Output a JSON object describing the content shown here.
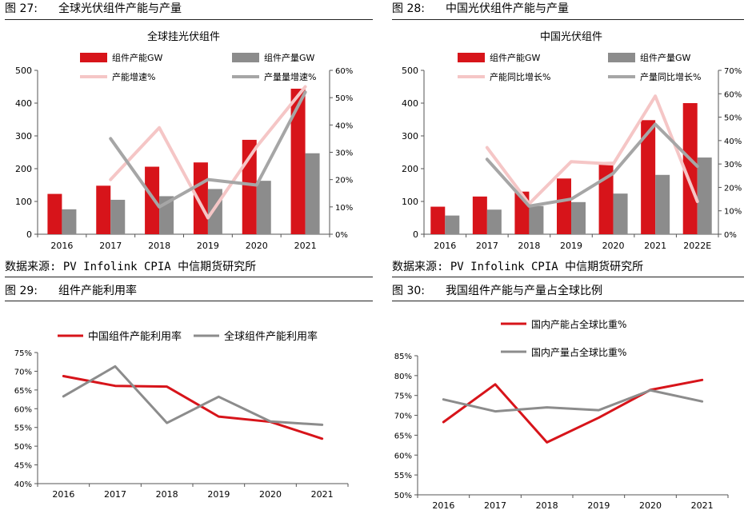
{
  "fig27": {
    "num": "图 27:",
    "title": "全球光伏组件产能与产量",
    "source": "数据来源: PV Infolink CPIA 中信期货研究所"
  },
  "fig28": {
    "num": "图 28:",
    "title": "中国光伏组件产能与产量",
    "source": "数据来源: PV Infolink CPIA 中信期货研究所"
  },
  "fig29": {
    "num": "图 29:",
    "title": "组件产能利用率"
  },
  "fig30": {
    "num": "图 30:",
    "title": "我国组件产能与产量占全球比例"
  },
  "colors": {
    "red": "#d7141a",
    "gray": "#8c8c8c",
    "pink": "#f5c6c6",
    "gray_line": "#a6a6a6"
  },
  "chart_data": [
    {
      "id": "c27",
      "type": "bar",
      "title": "全球挂光伏组件",
      "categories": [
        "2016",
        "2017",
        "2018",
        "2019",
        "2020",
        "2021"
      ],
      "series": [
        {
          "name": "组件产能GW",
          "kind": "bar",
          "axis": "left",
          "color": "#d7141a",
          "values": [
            123,
            148,
            206,
            219,
            288,
            444
          ]
        },
        {
          "name": "组件产量GW",
          "kind": "bar",
          "axis": "left",
          "color": "#8c8c8c",
          "values": [
            76,
            105,
            116,
            138,
            163,
            247
          ]
        },
        {
          "name": "产能增速%",
          "kind": "line",
          "axis": "right",
          "color": "#f5c6c6",
          "values": [
            null,
            20,
            39,
            6,
            32,
            54
          ]
        },
        {
          "name": "产量量增速%",
          "kind": "line",
          "axis": "right",
          "color": "#a6a6a6",
          "values": [
            null,
            35,
            10,
            20,
            18,
            52
          ]
        }
      ],
      "ylim_left": [
        0,
        500
      ],
      "yticks_left": [
        "0",
        "100",
        "200",
        "300",
        "400",
        "500"
      ],
      "ylim_right": [
        0,
        60
      ],
      "yticks_right": [
        "0%",
        "10%",
        "20%",
        "30%",
        "40%",
        "50%",
        "60%"
      ]
    },
    {
      "id": "c28",
      "type": "bar",
      "title": "中国光伏组件",
      "categories": [
        "2016",
        "2017",
        "2018",
        "2019",
        "2020",
        "2021",
        "2022E"
      ],
      "series": [
        {
          "name": "组件产能GW",
          "kind": "bar",
          "axis": "left",
          "color": "#d7141a",
          "values": [
            84,
            115,
            130,
            170,
            220,
            348,
            400
          ]
        },
        {
          "name": "组件产量GW",
          "kind": "bar",
          "axis": "left",
          "color": "#8c8c8c",
          "values": [
            57,
            75,
            86,
            98,
            124,
            181,
            234
          ]
        },
        {
          "name": "产能同比增长%",
          "kind": "line",
          "axis": "right",
          "color": "#f5c6c6",
          "values": [
            null,
            37,
            13,
            31,
            30,
            59,
            14
          ]
        },
        {
          "name": "产量同比增长%",
          "kind": "line",
          "axis": "right",
          "color": "#a6a6a6",
          "values": [
            null,
            32,
            12,
            15,
            26,
            47,
            29
          ]
        }
      ],
      "ylim_left": [
        0,
        500
      ],
      "yticks_left": [
        "0",
        "100",
        "200",
        "300",
        "400",
        "500"
      ],
      "ylim_right": [
        0,
        70
      ],
      "yticks_right": [
        "0%",
        "10%",
        "20%",
        "30%",
        "40%",
        "50%",
        "60%",
        "70%"
      ]
    },
    {
      "id": "c29",
      "type": "line",
      "categories": [
        "2016",
        "2017",
        "2018",
        "2019",
        "2020",
        "2021"
      ],
      "series": [
        {
          "name": "中国组件产能利用率",
          "color": "#d7141a",
          "values": [
            68.7,
            66.1,
            65.9,
            57.9,
            56.5,
            52.0
          ]
        },
        {
          "name": "全球组件产能利用率",
          "color": "#8c8c8c",
          "values": [
            63.3,
            71.3,
            56.2,
            63.2,
            56.6,
            55.7
          ]
        }
      ],
      "ylim": [
        40,
        75
      ],
      "yticks": [
        "40%",
        "45%",
        "50%",
        "55%",
        "60%",
        "65%",
        "70%",
        "75%"
      ]
    },
    {
      "id": "c30",
      "type": "line",
      "categories": [
        "2016",
        "2017",
        "2018",
        "2019",
        "2020",
        "2021"
      ],
      "series": [
        {
          "name": "国内产能占全球比重%",
          "color": "#d7141a",
          "values": [
            68.3,
            77.8,
            63.2,
            69.4,
            76.4,
            78.9
          ]
        },
        {
          "name": "国内产量占全球比重%",
          "color": "#8c8c8c",
          "values": [
            74.0,
            71.0,
            72.0,
            71.3,
            76.3,
            73.5
          ]
        }
      ],
      "ylim": [
        50,
        85
      ],
      "yticks": [
        "50%",
        "55%",
        "60%",
        "65%",
        "70%",
        "75%",
        "80%",
        "85%"
      ]
    }
  ]
}
